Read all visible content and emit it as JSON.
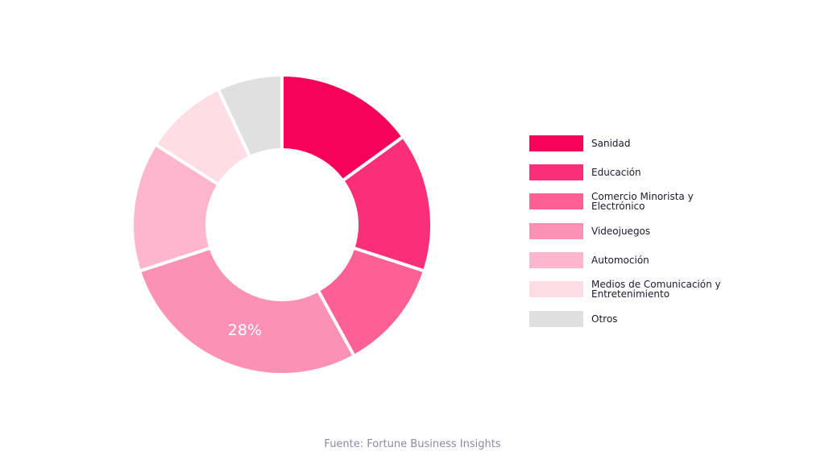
{
  "chart_data": {
    "type": "donut",
    "categories": [
      "Sanidad",
      "Educación",
      "Comercio Minorista y Electrónico",
      "Videojuegos",
      "Automoción",
      "Medios de Comunicación y Entretenimiento",
      "Otros"
    ],
    "values": [
      15,
      15,
      12,
      28,
      14,
      9,
      7
    ],
    "value_labels": [
      null,
      null,
      null,
      "28%",
      null,
      null,
      null
    ],
    "colors": [
      "#f7005a",
      "#fb2f78",
      "#fc6094",
      "#fd90b5",
      "#feb6cf",
      "#fedde7",
      "#e0e0e0"
    ],
    "source": "Fuente: Fortune Business Insights"
  }
}
